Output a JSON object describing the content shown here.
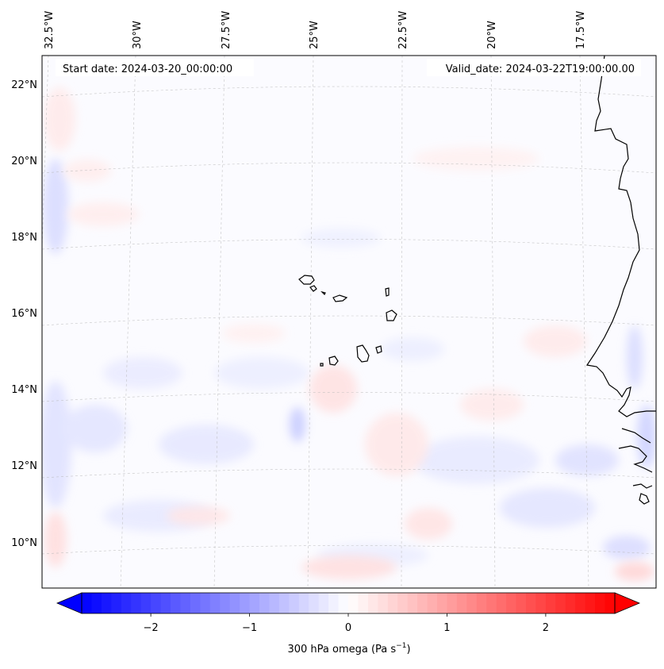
{
  "map": {
    "start_date_label": "Start date: 2024-03-20_00:00:00",
    "valid_date_label": "Valid_date: 2024-03-22T19:00:00.00",
    "lon_labels": [
      "32.5°W",
      "30°W",
      "27.5°W",
      "25°W",
      "22.5°W",
      "20°W",
      "17.5°W"
    ],
    "lat_labels": [
      "22°N",
      "20°N",
      "18°N",
      "16°N",
      "14°N",
      "12°N",
      "10°N"
    ],
    "field": "300 hPa omega"
  },
  "colorbar": {
    "label_text": "300 hPa omega (Pa s",
    "label_unit_exp": "−1",
    "label_close": ")",
    "ticks": [
      "−2",
      "−1",
      "0",
      "1",
      "2"
    ],
    "min": -2.7,
    "max": 2.7,
    "tick_values": [
      -2,
      -1,
      0,
      1,
      2
    ],
    "colors": {
      "negative": "#0000ff",
      "zero": "#ffffff",
      "positive": "#ff0000"
    }
  }
}
